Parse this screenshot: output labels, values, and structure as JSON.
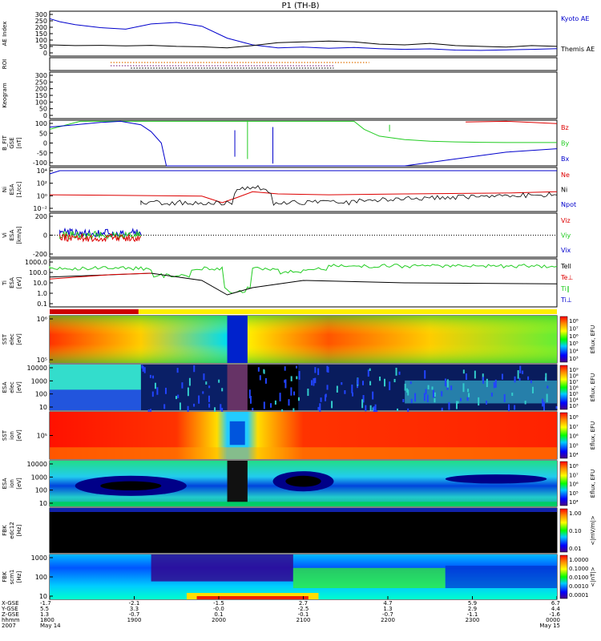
{
  "title": "P1 (TH-B)",
  "colors": {
    "blue": "#0000cc",
    "red": "#dd0000",
    "green": "#22cc22",
    "black": "#000000",
    "orange": "#e07000"
  },
  "chart_data": [
    {
      "id": "ae",
      "type": "line",
      "ylabel": "AE Index",
      "ylim": [
        0,
        300
      ],
      "ticks": [
        "300",
        "250",
        "200",
        "150",
        "100",
        "50",
        "0"
      ],
      "series": [
        {
          "name": "Kyoto AE",
          "color": "#0000cc",
          "x": [
            0,
            0.02,
            0.05,
            0.1,
            0.15,
            0.2,
            0.25,
            0.3,
            0.35,
            0.4,
            0.45,
            0.5,
            0.55,
            0.6,
            0.65,
            0.7,
            0.75,
            0.8,
            0.85,
            0.9,
            0.95,
            1.0
          ],
          "y": [
            250,
            230,
            210,
            190,
            180,
            215,
            225,
            200,
            120,
            75,
            55,
            60,
            52,
            58,
            50,
            45,
            48,
            40,
            38,
            42,
            45,
            50
          ]
        },
        {
          "name": "Themis AE",
          "color": "#000000",
          "x": [
            0,
            0.05,
            0.1,
            0.15,
            0.2,
            0.25,
            0.3,
            0.35,
            0.4,
            0.45,
            0.5,
            0.55,
            0.6,
            0.65,
            0.7,
            0.75,
            0.8,
            0.85,
            0.9,
            0.95,
            1.0
          ],
          "y": [
            75,
            70,
            72,
            68,
            72,
            65,
            62,
            55,
            70,
            90,
            95,
            100,
            95,
            80,
            75,
            85,
            70,
            65,
            60,
            70,
            65
          ]
        }
      ]
    },
    {
      "id": "roi",
      "type": "scatter",
      "ylabel": "ROI",
      "ticks": []
    },
    {
      "id": "keogram",
      "type": "line",
      "ylabel": "Keogram",
      "ylim": [
        0,
        300
      ],
      "ticks": [
        "300",
        "250",
        "200",
        "150",
        "100",
        "50",
        "0"
      ]
    },
    {
      "id": "bfit",
      "type": "line",
      "ylabel": "B_FIT\nGSE\n[nT]",
      "ylim": [
        -100,
        100
      ],
      "ticks": [
        "100",
        "50",
        "0",
        "-50",
        "-100"
      ],
      "series": [
        {
          "name": "Bz",
          "color": "#dd0000",
          "x": [
            0.82,
            0.9,
            0.95,
            1.0
          ],
          "y": [
            92,
            95,
            90,
            85
          ]
        },
        {
          "name": "By",
          "color": "#22cc22",
          "x": [
            0,
            0.06,
            0.6,
            0.62,
            0.65,
            0.7,
            0.75,
            0.8,
            0.85,
            0.9,
            1.0
          ],
          "y": [
            60,
            95,
            95,
            60,
            30,
            15,
            8,
            5,
            3,
            2,
            2
          ]
        },
        {
          "name": "Bx",
          "color": "#0000cc",
          "x": [
            0,
            0.05,
            0.1,
            0.14,
            0.18,
            0.2,
            0.22,
            0.23,
            0.7,
            0.8,
            0.9,
            1.0
          ],
          "y": [
            70,
            80,
            90,
            95,
            80,
            50,
            0,
            -100,
            -100,
            -70,
            -40,
            -25
          ]
        }
      ]
    },
    {
      "id": "ni",
      "type": "line",
      "ylabel": "Ni\nESA\n[1/cc]",
      "ticks": [
        "10⁴",
        "10²",
        "10⁰",
        "10⁻²"
      ],
      "series": [
        {
          "name": "Ne",
          "color": "#dd0000",
          "x": [],
          "y": []
        },
        {
          "name": "Ni",
          "color": "#000000",
          "x": [],
          "y": []
        },
        {
          "name": "Npot",
          "color": "#0000cc",
          "x": [],
          "y": []
        }
      ]
    },
    {
      "id": "vi",
      "type": "line",
      "ylabel": "Vi\nESA\n[km/s]",
      "ylim": [
        -300,
        300
      ],
      "ticks": [
        "200",
        "0",
        "-200"
      ],
      "series": [
        {
          "name": "Viz",
          "color": "#dd0000",
          "x": [],
          "y": []
        },
        {
          "name": "Viy",
          "color": "#22cc22",
          "x": [],
          "y": []
        },
        {
          "name": "Vix",
          "color": "#0000cc",
          "x": [],
          "y": []
        }
      ]
    },
    {
      "id": "ti",
      "type": "line",
      "ylabel": "Ti\nESA\n[eV]",
      "ticks": [
        "1000.0",
        "100.0",
        "10.0",
        "1.0",
        "0.1"
      ],
      "series": [
        {
          "name": "Tell",
          "color": "#000000",
          "x": [],
          "y": []
        },
        {
          "name": "Te⊥",
          "color": "#dd0000",
          "x": [],
          "y": []
        },
        {
          "name": "Ti∥",
          "color": "#22cc22",
          "x": [],
          "y": []
        },
        {
          "name": "Ti⊥",
          "color": "#0000cc",
          "x": [],
          "y": []
        }
      ]
    },
    {
      "id": "sst_e",
      "type": "heatmap",
      "ylabel": "SST\nelec\n[eV]",
      "ticks": [
        "10⁶",
        "10⁵"
      ],
      "colorbar": {
        "label": "Eflux, EFU",
        "ticks": [
          "10⁸",
          "10⁷",
          "10⁶",
          "10⁵",
          "10⁴",
          "10³"
        ]
      }
    },
    {
      "id": "esa_e",
      "type": "heatmap",
      "ylabel": "ESA\nelec\n[eV]",
      "ticks": [
        "10000",
        "1000",
        "100",
        "10"
      ],
      "colorbar": {
        "label": "Eflux, EFU",
        "ticks": [
          "10⁹",
          "10⁸",
          "10⁷",
          "10⁶",
          "10⁵",
          "10⁴",
          "10³"
        ]
      }
    },
    {
      "id": "sst_i",
      "type": "heatmap",
      "ylabel": "SST\nion\n[eV]",
      "ticks": [
        "10⁵"
      ],
      "colorbar": {
        "label": "Eflux, EFU",
        "ticks": [
          "10⁸",
          "10⁷",
          "10⁶",
          "10⁵",
          "10⁴"
        ]
      }
    },
    {
      "id": "esa_i",
      "type": "heatmap",
      "ylabel": "ESA\nion\n[eV]",
      "ticks": [
        "10000",
        "1000",
        "100",
        "10"
      ],
      "colorbar": {
        "label": "Eflux, EFU",
        "ticks": [
          "10⁸",
          "10⁷",
          "10⁶",
          "10⁵",
          "10⁴"
        ]
      }
    },
    {
      "id": "fbk_edc",
      "type": "heatmap",
      "ylabel": "FBK\nedc12\n[Hz]",
      "ticks": [],
      "colorbar": {
        "label": "<|mV/m|>",
        "ticks": [
          "1.00",
          "0.10",
          "0.01"
        ]
      }
    },
    {
      "id": "fbk_scm",
      "type": "heatmap",
      "ylabel": "FBK\nscm1\n[Hz]",
      "ticks": [
        "1000",
        "100",
        "10"
      ],
      "colorbar": {
        "label": "<|nT|>",
        "ticks": [
          "1.0000",
          "0.1000",
          "0.0100",
          "0.0010",
          "0.0001"
        ]
      }
    }
  ],
  "x_axis": {
    "row_labels": [
      "X-GSE",
      "Y-GSE",
      "Z-GSE",
      "hhmm",
      "2007"
    ],
    "columns": [
      {
        "values": [
          "-1.7",
          "5.5",
          "1.3",
          "1800",
          "May 14"
        ]
      },
      {
        "values": [
          "-2.1",
          "3.3",
          "-0.7",
          "1900",
          ""
        ]
      },
      {
        "values": [
          "-1.5",
          "-0.0",
          "0.1",
          "2000",
          ""
        ]
      },
      {
        "values": [
          "2.7",
          "-2.5",
          "-0.1",
          "2100",
          ""
        ]
      },
      {
        "values": [
          "4.7",
          "1.3",
          "-0.7",
          "2200",
          ""
        ]
      },
      {
        "values": [
          "5.9",
          "2.9",
          "-1.1",
          "2300",
          ""
        ]
      },
      {
        "values": [
          "6.7",
          "4.4",
          "-1.6",
          "0000",
          "May 15"
        ]
      }
    ]
  }
}
